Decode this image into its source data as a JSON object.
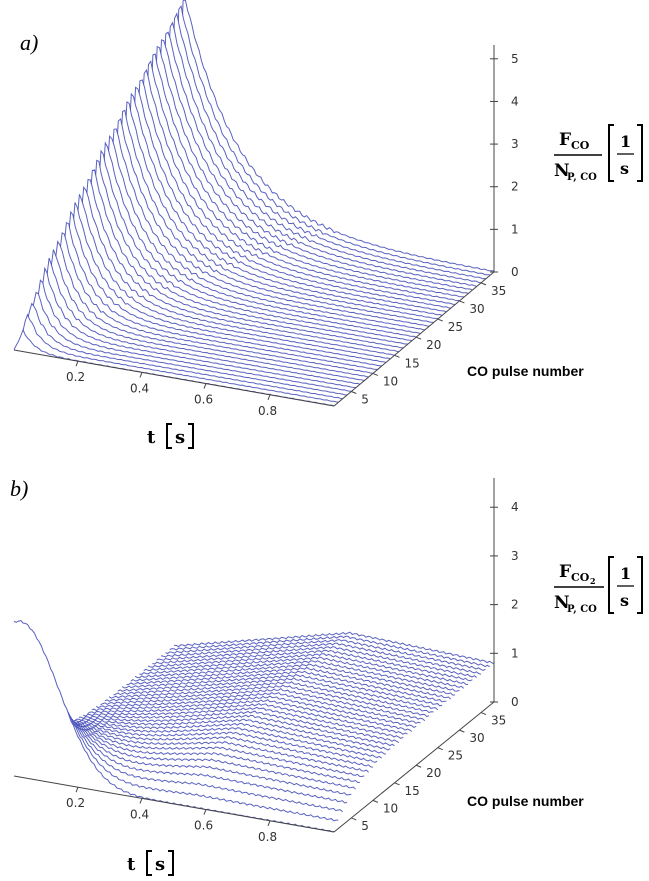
{
  "chart_data": [
    {
      "type": "surface-waterfall",
      "panel": "a)",
      "quantity": "CO",
      "x_ticks": [
        "0.2",
        "0.4",
        "0.6",
        "0.8"
      ],
      "y_ticks": [
        "5",
        "10",
        "15",
        "20",
        "25",
        "30",
        "35"
      ],
      "z_ticks": [
        "0",
        "1",
        "2",
        "3",
        "4",
        "5"
      ],
      "xlim": [
        0,
        1
      ],
      "ylim": [
        1,
        38
      ],
      "zlim": [
        0,
        5
      ],
      "xlabel": "t",
      "xunit": "s",
      "ylabel": "CO pulse number",
      "zlabel": {
        "numerator": "F",
        "num_sub": "CO",
        "denominator": "N",
        "den_sub": "P, CO",
        "unit_top": "1",
        "unit_bottom": "s"
      },
      "pulses": 38,
      "peak_value_first_pulse": 0.5,
      "peak_value_last_pulse": 5.3,
      "peak_time": 0.03
    },
    {
      "type": "surface-waterfall",
      "panel": "b)",
      "quantity": "CO2",
      "x_ticks": [
        "0.2",
        "0.4",
        "0.6",
        "0.8"
      ],
      "y_ticks": [
        "5",
        "10",
        "15",
        "20",
        "25",
        "30",
        "35"
      ],
      "z_ticks": [
        "0",
        "1",
        "2",
        "3",
        "4"
      ],
      "xlim": [
        0,
        1
      ],
      "ylim": [
        1,
        38
      ],
      "zlim": [
        0,
        4.5
      ],
      "xlabel": "t",
      "xunit": "s",
      "ylabel": "CO pulse number",
      "zlabel": {
        "numerator": "F",
        "num_sub": "CO",
        "num_subsub": "2",
        "denominator": "N",
        "den_sub": "P, CO",
        "unit_top": "1",
        "unit_bottom": "s"
      },
      "pulses": 38,
      "peak_value_first_pulse": 3.2,
      "late_pulse_plateau": 0.9
    }
  ]
}
